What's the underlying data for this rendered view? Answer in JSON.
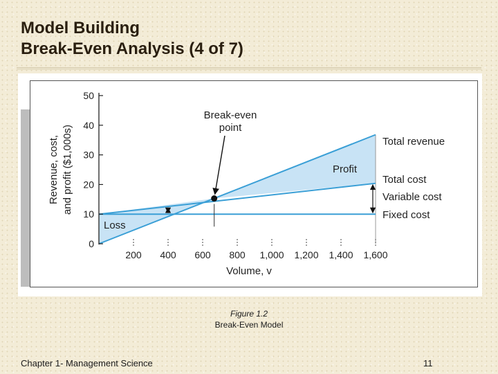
{
  "slide": {
    "title_line1": "Model Building",
    "title_line2": "Break-Even Analysis (4 of 7)",
    "figure_number": "Figure 1.2",
    "figure_caption": "Break-Even Model",
    "footer_left": "Chapter 1- Management Science",
    "footer_right": "11"
  },
  "chart_data": {
    "type": "line",
    "xlabel": "Volume, v",
    "ylabel_line1": "Revenue, cost,",
    "ylabel_line2": "and profit ($1,000s)",
    "xlim": [
      0,
      1600
    ],
    "ylim": [
      0,
      50
    ],
    "x_ticks": [
      200,
      400,
      600,
      800,
      1000,
      1200,
      1400,
      1600
    ],
    "x_tick_labels": [
      "200",
      "400",
      "600",
      "800",
      "1,000",
      "1,200",
      "1,400",
      "1,600"
    ],
    "y_ticks": [
      0,
      10,
      20,
      30,
      40,
      50
    ],
    "y_tick_labels": [
      "0",
      "10",
      "20",
      "30",
      "40",
      "50"
    ],
    "series": [
      {
        "name": "Total revenue",
        "x": [
          0,
          1600
        ],
        "y": [
          0,
          36.8
        ]
      },
      {
        "name": "Total cost",
        "x": [
          0,
          1600
        ],
        "y": [
          10,
          20.4
        ]
      },
      {
        "name": "Fixed cost",
        "x": [
          0,
          1600
        ],
        "y": [
          10,
          10
        ]
      }
    ],
    "break_even": {
      "x": 666.7,
      "y": 15.3
    },
    "annotations": {
      "break_even_line1": "Break-even",
      "break_even_line2": "point",
      "profit": "Profit",
      "loss": "Loss",
      "variable_cost": "Variable cost"
    },
    "colors": {
      "line": "#3a9fd6",
      "shade": "#c8e3f5",
      "axis": "#222222"
    }
  }
}
